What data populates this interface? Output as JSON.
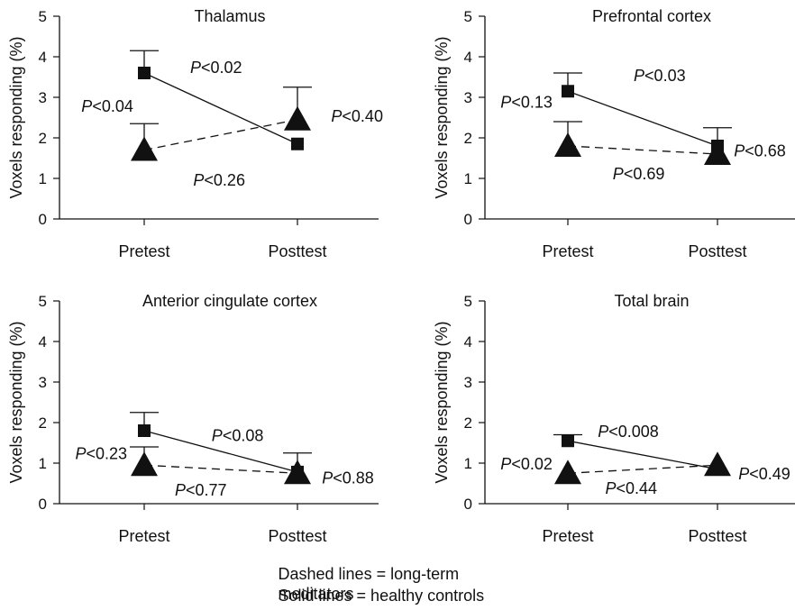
{
  "caption": {
    "line1": "Dashed lines = long-term meditators",
    "line2": "Solid lines = healthy controls"
  },
  "colors": {
    "ink": "#111111",
    "background": "#ffffff"
  },
  "chart_data": [
    {
      "type": "line",
      "title": "Thalamus",
      "ylabel": "Voxels responding (%)",
      "categories": [
        "Pretest",
        "Posttest"
      ],
      "ylim": [
        0,
        5
      ],
      "yticks": [
        "0",
        "1",
        "2",
        "3",
        "4",
        "5"
      ],
      "grid": false,
      "series": [
        {
          "marker": "square",
          "line": "solid",
          "values": [
            3.6,
            1.85
          ],
          "error_upper": [
            4.15,
            null
          ]
        },
        {
          "marker": "triangle",
          "line": "dashed",
          "values": [
            1.7,
            2.45
          ],
          "error_upper": [
            2.35,
            3.25
          ]
        }
      ],
      "annotations": [
        {
          "italic": "P",
          "text": "<0.02",
          "x": 0.3,
          "y": 3.6
        },
        {
          "italic": "P",
          "text": "<0.04",
          "x": -0.41,
          "y": 2.65
        },
        {
          "italic": "P",
          "text": "<0.26",
          "x": 0.32,
          "y": 0.82
        },
        {
          "italic": "P",
          "text": "<0.40",
          "x": 1.22,
          "y": 2.4
        }
      ]
    },
    {
      "type": "line",
      "title": "Prefrontal cortex",
      "ylabel": "Voxels responding (%)",
      "categories": [
        "Pretest",
        "Posttest"
      ],
      "ylim": [
        0,
        5
      ],
      "yticks": [
        "0",
        "1",
        "2",
        "3",
        "4",
        "5"
      ],
      "grid": false,
      "series": [
        {
          "marker": "square",
          "line": "solid",
          "values": [
            3.15,
            1.8
          ],
          "error_upper": [
            3.6,
            2.25
          ]
        },
        {
          "marker": "triangle",
          "line": "dashed",
          "values": [
            1.8,
            1.6
          ],
          "error_upper": [
            2.4,
            null
          ]
        }
      ],
      "annotations": [
        {
          "italic": "P",
          "text": "<0.03",
          "x": 0.44,
          "y": 3.4
        },
        {
          "italic": "P",
          "text": "<0.13",
          "x": -0.45,
          "y": 2.75
        },
        {
          "italic": "P",
          "text": "<0.69",
          "x": 0.3,
          "y": 0.98
        },
        {
          "italic": "P",
          "text": "<0.68",
          "x": 1.11,
          "y": 1.55
        }
      ]
    },
    {
      "type": "line",
      "title": "Anterior cingulate cortex",
      "ylabel": "Voxels responding (%)",
      "categories": [
        "Pretest",
        "Posttest"
      ],
      "ylim": [
        0,
        5
      ],
      "yticks": [
        "0",
        "1",
        "2",
        "3",
        "4",
        "5"
      ],
      "grid": false,
      "series": [
        {
          "marker": "square",
          "line": "solid",
          "values": [
            1.8,
            0.78
          ],
          "error_upper": [
            2.25,
            1.25
          ]
        },
        {
          "marker": "triangle",
          "line": "dashed",
          "values": [
            0.95,
            0.75
          ],
          "error_upper": [
            1.4,
            null
          ]
        }
      ],
      "annotations": [
        {
          "italic": "P",
          "text": "<0.08",
          "x": 0.44,
          "y": 1.55
        },
        {
          "italic": "P",
          "text": "<0.23",
          "x": -0.45,
          "y": 1.1
        },
        {
          "italic": "P",
          "text": "<0.77",
          "x": 0.2,
          "y": 0.2
        },
        {
          "italic": "P",
          "text": "<0.88",
          "x": 1.16,
          "y": 0.5
        }
      ]
    },
    {
      "type": "line",
      "title": "Total brain",
      "ylabel": "Voxels responding (%)",
      "categories": [
        "Pretest",
        "Posttest"
      ],
      "ylim": [
        0,
        5
      ],
      "yticks": [
        "0",
        "1",
        "2",
        "3",
        "4",
        "5"
      ],
      "grid": false,
      "series": [
        {
          "marker": "square",
          "line": "solid",
          "values": [
            1.55,
            0.85
          ],
          "error_upper": [
            1.7,
            null
          ]
        },
        {
          "marker": "triangle",
          "line": "dashed",
          "values": [
            0.75,
            0.95
          ],
          "error_upper": [
            null,
            null
          ]
        }
      ],
      "annotations": [
        {
          "italic": "P",
          "text": "<0.008",
          "x": 0.2,
          "y": 1.65
        },
        {
          "italic": "P",
          "text": "<0.02",
          "x": -0.45,
          "y": 0.85
        },
        {
          "italic": "P",
          "text": "<0.44",
          "x": 0.25,
          "y": 0.25
        },
        {
          "italic": "P",
          "text": "<0.49",
          "x": 1.14,
          "y": 0.6
        }
      ]
    }
  ]
}
